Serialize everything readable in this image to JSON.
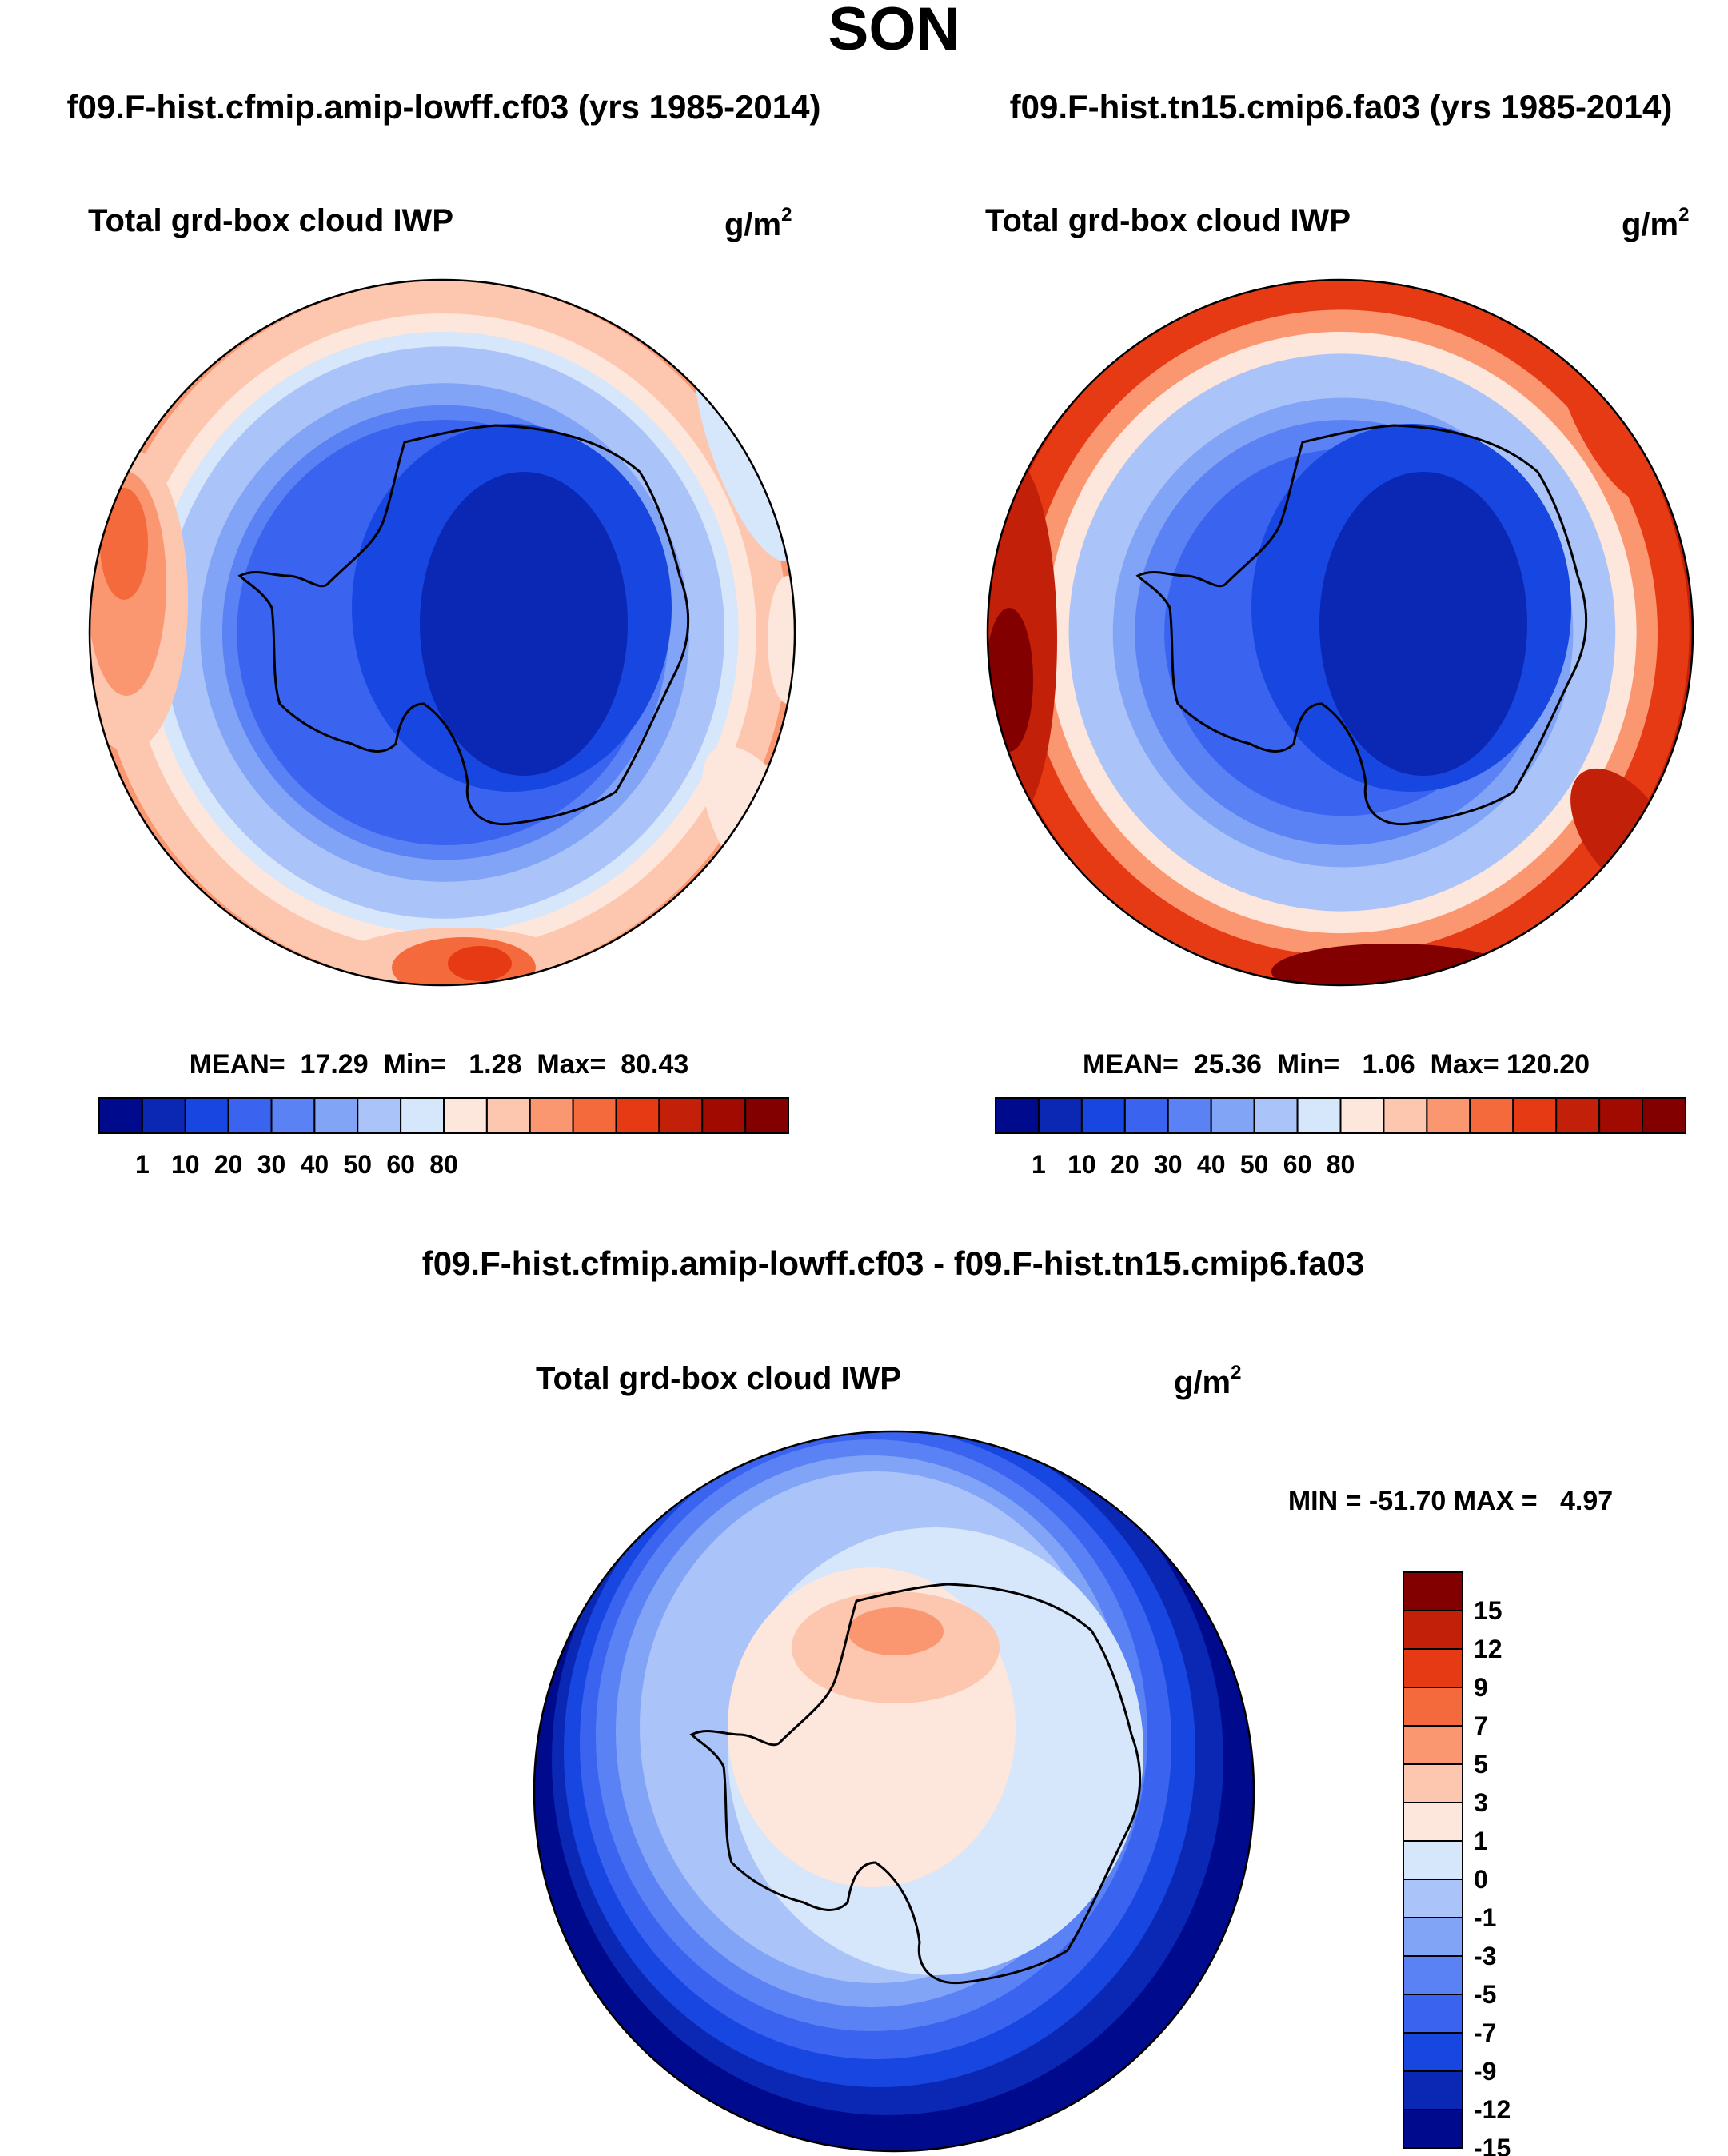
{
  "title": "SON",
  "colors": {
    "abs_scale": [
      "#000a8c",
      "#0a28b4",
      "#1846e0",
      "#3a64f0",
      "#5a82f5",
      "#82a4f7",
      "#aac4fa",
      "#d6e6fb",
      "#fde6dc",
      "#fdc6ae",
      "#fa9670",
      "#f56a3c",
      "#e63a14",
      "#c3200a",
      "#a00a00",
      "#820000"
    ],
    "diff_scale": [
      "#000a8c",
      "#0a28b4",
      "#1846e0",
      "#3a64f0",
      "#5a82f5",
      "#82a4f7",
      "#aac4fa",
      "#d6e6fb",
      "#fde6dc",
      "#fdc6ae",
      "#fa9670",
      "#f56a3c",
      "#e63a14",
      "#c3200a",
      "#820000"
    ],
    "coast": "#000000"
  },
  "chart_data": [
    {
      "type": "heatmap",
      "projection": "south-polar-stereographic",
      "case_title": "f09.F-hist.cfmip.amip-lowff.cf03 (yrs 1985-2014)",
      "variable": "Total grd-box cloud IWP",
      "units": "g/m",
      "units_sup": "2",
      "stats_text": "MEAN=  17.29  Min=   1.28  Max=  80.43",
      "stats": {
        "mean": 17.29,
        "min": 1.28,
        "max": 80.43
      },
      "colorbar_ticks": [
        "1",
        "10",
        "20",
        "30",
        "40",
        "50",
        "60",
        "80"
      ],
      "ring_values": [
        0.4,
        0.45,
        0.5,
        0.58,
        0.62,
        0.68,
        0.72,
        0.78,
        0.82,
        0.87,
        0.92,
        0.96,
        1.0
      ]
    },
    {
      "type": "heatmap",
      "projection": "south-polar-stereographic",
      "case_title": "f09.F-hist.tn15.cmip6.fa03 (yrs 1985-2014)",
      "variable": "Total grd-box cloud IWP",
      "units": "g/m",
      "units_sup": "2",
      "stats_text": "MEAN=  25.36  Min=   1.06  Max= 120.20",
      "stats": {
        "mean": 25.36,
        "min": 1.06,
        "max": 120.2
      },
      "colorbar_ticks": [
        "1",
        "10",
        "20",
        "30",
        "40",
        "50",
        "60",
        "80"
      ],
      "ring_values": [
        0.4,
        0.45,
        0.5,
        0.58,
        0.64,
        0.7,
        0.76,
        0.82,
        0.88,
        0.94,
        0.97,
        1.0
      ]
    },
    {
      "type": "heatmap",
      "projection": "south-polar-stereographic",
      "case_title": "f09.F-hist.cfmip.amip-lowff.cf03 - f09.F-hist.tn15.cmip6.fa03",
      "variable": "Total grd-box cloud IWP",
      "units": "g/m",
      "units_sup": "2",
      "stats_text": "MIN = -51.70 MAX =   4.97",
      "stats": {
        "min": -51.7,
        "max": 4.97
      },
      "colorbar_ticks": [
        "15",
        "12",
        "9",
        "7",
        "5",
        "3",
        "1",
        "0",
        "-1",
        "-3",
        "-5",
        "-7",
        "-9",
        "-12",
        "-15"
      ]
    }
  ]
}
